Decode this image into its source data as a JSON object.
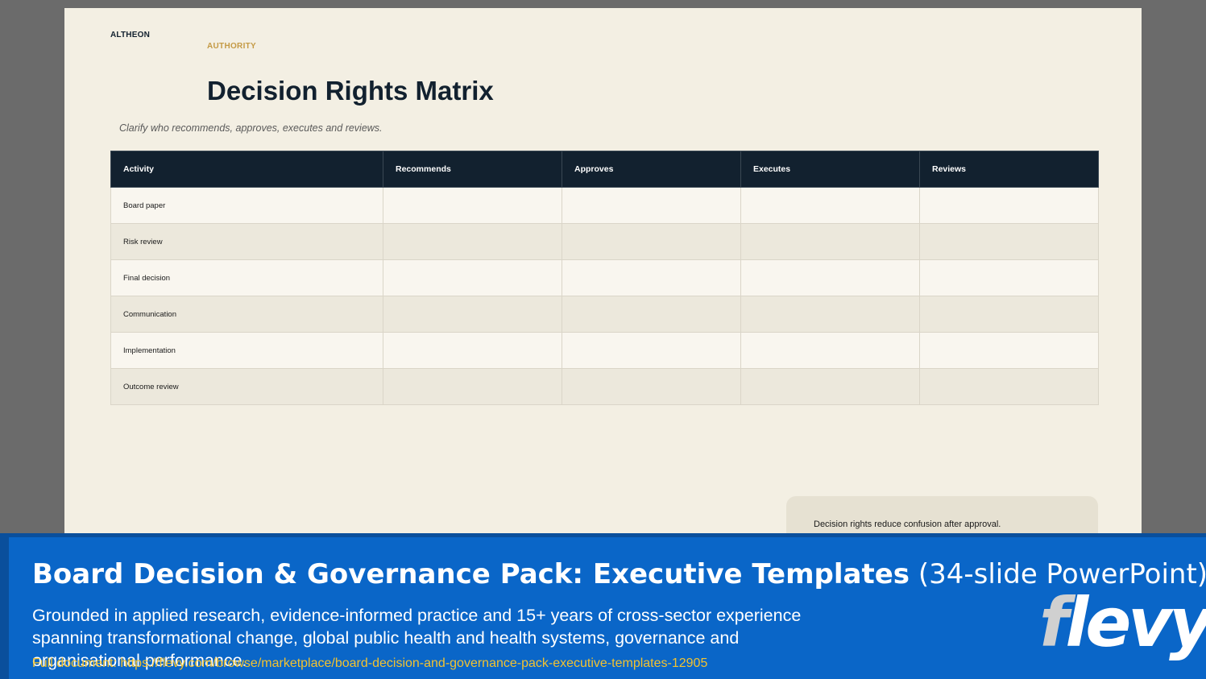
{
  "slide": {
    "brand": "ALTHEON",
    "section_label": "AUTHORITY",
    "title": "Decision Rights Matrix",
    "subtitle": "Clarify who recommends, approves, executes and reviews.",
    "table": {
      "headers": [
        "Activity",
        "Recommends",
        "Approves",
        "Executes",
        "Reviews"
      ],
      "rows": [
        [
          "Board paper",
          "",
          "",
          "",
          ""
        ],
        [
          "Risk review",
          "",
          "",
          "",
          ""
        ],
        [
          "Final decision",
          "",
          "",
          "",
          ""
        ],
        [
          "Communication",
          "",
          "",
          "",
          ""
        ],
        [
          "Implementation",
          "",
          "",
          "",
          ""
        ],
        [
          "Outcome review",
          "",
          "",
          "",
          ""
        ]
      ]
    },
    "note": "Decision rights reduce confusion after approval."
  },
  "banner": {
    "title_bold": "Board Decision & Governance Pack: Executive Templates",
    "title_light": "(34-slide PowerPoint)",
    "description": "Grounded in applied research, evidence-informed practice and 15+ years of cross-sector experience spanning transformational change, global public health and health systems, governance and organisational performance.",
    "link_label": "Full document: https://flevy.com/browse/marketplace/board-decision-and-governance-pack-executive-templates-12905",
    "logo_first": "f",
    "logo_rest": "levy"
  },
  "colors": {
    "navy": "#12212f",
    "accent_gold": "#c49a45",
    "slide_bg": "#f3efe3",
    "banner_blue": "#0a66c8",
    "link_yellow": "#f2c230"
  }
}
